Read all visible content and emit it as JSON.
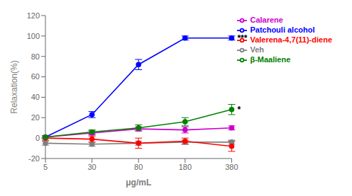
{
  "chart_data": {
    "type": "line",
    "categories": [
      "5",
      "30",
      "80",
      "180",
      "380"
    ],
    "series": [
      {
        "name": "Veh",
        "color": "#7f7f7f",
        "values": [
          -5,
          -6,
          -5,
          -4,
          -4
        ],
        "errors": [
          2,
          2,
          2,
          2,
          2
        ]
      },
      {
        "name": "Patchouli alcohol",
        "color": "#0000FF",
        "values": [
          1,
          23,
          72,
          98,
          98
        ],
        "errors": [
          1,
          3,
          5,
          2,
          2
        ]
      },
      {
        "name": "Valerena-4,7(11)-diene",
        "color": "#FF0000",
        "values": [
          0,
          -1,
          -5,
          -3,
          -8
        ],
        "errors": [
          2,
          3,
          5,
          3,
          5
        ]
      },
      {
        "name": "Calarene",
        "color": "#CC00CC",
        "values": [
          1,
          5,
          9,
          8,
          10
        ],
        "errors": [
          1,
          2,
          2,
          3,
          2
        ]
      },
      {
        "name": "β-Maaliene",
        "color": "#008000",
        "values": [
          1,
          6,
          10,
          16,
          28
        ],
        "errors": [
          1,
          2,
          3,
          4,
          5
        ]
      }
    ],
    "annotations": [
      {
        "text": "***",
        "x": "380",
        "y": 98
      },
      {
        "text": "*",
        "x": "380",
        "y": 28
      }
    ],
    "xlabel": "μg/mL",
    "ylabel": "Relaxation(%)",
    "ylim": [
      -20,
      120
    ],
    "yticks": [
      -20,
      0,
      20,
      40,
      60,
      80,
      100,
      120
    ],
    "marker": "circle",
    "legend": "right",
    "grid": false
  }
}
